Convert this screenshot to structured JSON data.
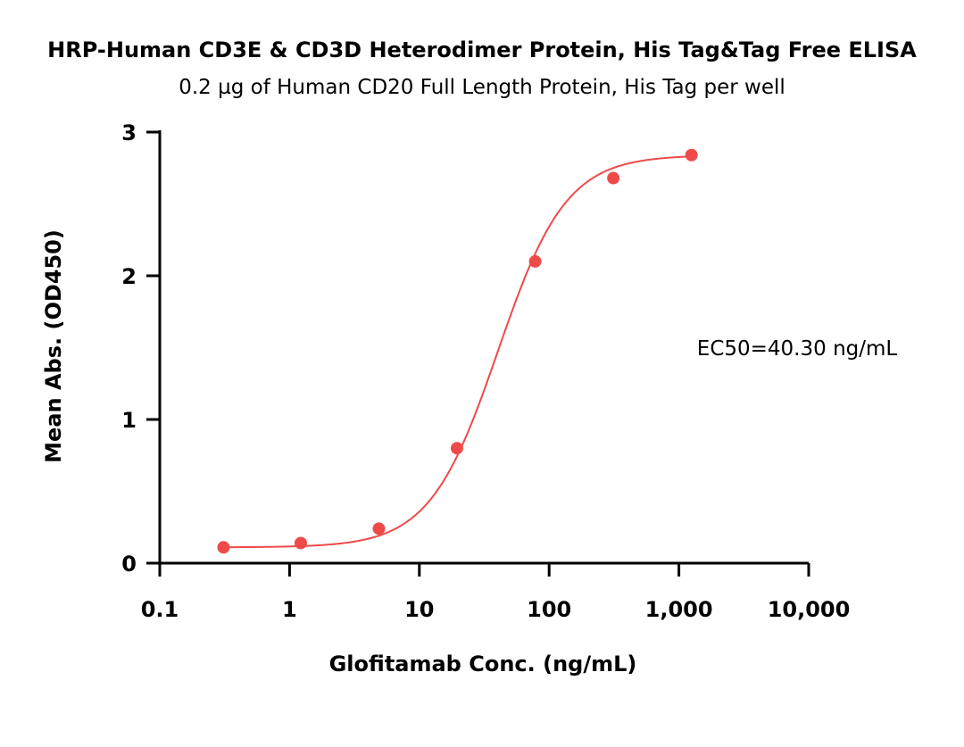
{
  "chart_data": {
    "type": "scatter",
    "title": "HRP-Human CD3E & CD3D Heterodimer Protein, His Tag&Tag Free ELISA",
    "subtitle": "0.2 µg of Human CD20 Full Length Protein, His Tag per well",
    "xlabel": "Glofitamab Conc. (ng/mL)",
    "ylabel": "Mean Abs. (OD450)",
    "x_scale": "log",
    "xlim": [
      0.1,
      10000
    ],
    "ylim": [
      0,
      3
    ],
    "x_ticks": [
      {
        "value": 0.1,
        "label": "0.1"
      },
      {
        "value": 1,
        "label": "1"
      },
      {
        "value": 10,
        "label": "10"
      },
      {
        "value": 100,
        "label": "100"
      },
      {
        "value": 1000,
        "label": "1,000"
      },
      {
        "value": 10000,
        "label": "10,000"
      }
    ],
    "y_ticks": [
      {
        "value": 0,
        "label": "0"
      },
      {
        "value": 1,
        "label": "1"
      },
      {
        "value": 2,
        "label": "2"
      },
      {
        "value": 3,
        "label": "3"
      }
    ],
    "series": [
      {
        "x": [
          0.31,
          1.22,
          4.88,
          19.5,
          78.1,
          312.5,
          1250
        ],
        "y": [
          0.11,
          0.14,
          0.24,
          0.8,
          2.1,
          2.68,
          2.84
        ],
        "color": "#ef4a4a",
        "fit": {
          "type": "4PL",
          "bottom": 0.11,
          "top": 2.84,
          "ec50": 40.3,
          "hill": 1.65
        }
      }
    ],
    "annotation": "EC50=40.30 ng/mL",
    "grid": false,
    "legend": "none"
  }
}
